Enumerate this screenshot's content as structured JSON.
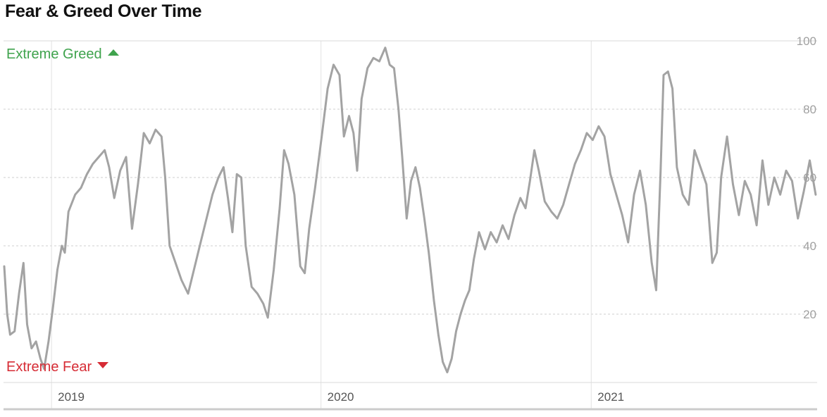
{
  "title": "Fear & Greed Over Time",
  "labels": {
    "extreme_greed": "Extreme Greed",
    "extreme_fear": "Extreme Fear"
  },
  "colors": {
    "line": "#a3a3a3",
    "grid": "#cfcfcf",
    "greed": "#3fa34d",
    "fear": "#d62c35",
    "tick_y": "#a0a0a0",
    "tick_x": "#555555"
  },
  "icons": {
    "greed_marker": "triangle-up-icon",
    "fear_marker": "triangle-down-icon"
  },
  "chart_data": {
    "type": "line",
    "title": "Fear & Greed Over Time",
    "xlabel": "",
    "ylabel": "",
    "ylim": [
      0,
      100
    ],
    "y_ticks": [
      20,
      40,
      60,
      80,
      100
    ],
    "x_ticks": [
      "2019",
      "2020",
      "2021"
    ],
    "xlim": [
      "2018-10-28",
      "2021-11-03"
    ],
    "grid": true,
    "series": [
      {
        "values": [
          [
            "2018-10-29",
            34
          ],
          [
            "2018-11-02",
            20
          ],
          [
            "2018-11-06",
            14
          ],
          [
            "2018-11-12",
            15
          ],
          [
            "2018-11-18",
            26
          ],
          [
            "2018-11-24",
            35
          ],
          [
            "2018-11-29",
            17
          ],
          [
            "2018-12-05",
            10
          ],
          [
            "2018-12-11",
            12
          ],
          [
            "2018-12-17",
            7
          ],
          [
            "2018-12-22",
            4
          ],
          [
            "2018-12-28",
            12
          ],
          [
            "2019-01-03",
            22
          ],
          [
            "2019-01-09",
            33
          ],
          [
            "2019-01-15",
            40
          ],
          [
            "2019-01-19",
            38
          ],
          [
            "2019-01-24",
            50
          ],
          [
            "2019-02-02",
            55
          ],
          [
            "2019-02-10",
            57
          ],
          [
            "2019-02-18",
            61
          ],
          [
            "2019-02-26",
            64
          ],
          [
            "2019-03-06",
            66
          ],
          [
            "2019-03-14",
            68
          ],
          [
            "2019-03-20",
            63
          ],
          [
            "2019-03-27",
            54
          ],
          [
            "2019-04-04",
            62
          ],
          [
            "2019-04-12",
            66
          ],
          [
            "2019-04-20",
            45
          ],
          [
            "2019-04-28",
            58
          ],
          [
            "2019-05-06",
            73
          ],
          [
            "2019-05-14",
            70
          ],
          [
            "2019-05-22",
            74
          ],
          [
            "2019-05-30",
            72
          ],
          [
            "2019-06-04",
            60
          ],
          [
            "2019-06-10",
            40
          ],
          [
            "2019-06-18",
            35
          ],
          [
            "2019-06-26",
            30
          ],
          [
            "2019-07-05",
            26
          ],
          [
            "2019-07-14",
            34
          ],
          [
            "2019-07-22",
            41
          ],
          [
            "2019-07-30",
            48
          ],
          [
            "2019-08-07",
            55
          ],
          [
            "2019-08-15",
            60
          ],
          [
            "2019-08-22",
            63
          ],
          [
            "2019-08-28",
            54
          ],
          [
            "2019-09-03",
            44
          ],
          [
            "2019-09-09",
            61
          ],
          [
            "2019-09-15",
            60
          ],
          [
            "2019-09-21",
            40
          ],
          [
            "2019-09-29",
            28
          ],
          [
            "2019-10-07",
            26
          ],
          [
            "2019-10-15",
            23
          ],
          [
            "2019-10-21",
            19
          ],
          [
            "2019-10-29",
            33
          ],
          [
            "2019-11-06",
            51
          ],
          [
            "2019-11-12",
            68
          ],
          [
            "2019-11-18",
            64
          ],
          [
            "2019-11-26",
            55
          ],
          [
            "2019-12-04",
            34
          ],
          [
            "2019-12-10",
            32
          ],
          [
            "2019-12-16",
            45
          ],
          [
            "2019-12-24",
            57
          ],
          [
            "2020-01-02",
            72
          ],
          [
            "2020-01-10",
            86
          ],
          [
            "2020-01-18",
            93
          ],
          [
            "2020-01-26",
            90
          ],
          [
            "2020-02-01",
            72
          ],
          [
            "2020-02-08",
            78
          ],
          [
            "2020-02-14",
            73
          ],
          [
            "2020-02-19",
            62
          ],
          [
            "2020-02-25",
            83
          ],
          [
            "2020-03-04",
            92
          ],
          [
            "2020-03-12",
            95
          ],
          [
            "2020-03-20",
            94
          ],
          [
            "2020-03-28",
            98
          ],
          [
            "2020-04-03",
            93
          ],
          [
            "2020-04-09",
            92
          ],
          [
            "2020-04-15",
            80
          ],
          [
            "2020-04-20",
            66
          ],
          [
            "2020-04-26",
            48
          ],
          [
            "2020-05-02",
            59
          ],
          [
            "2020-05-08",
            63
          ],
          [
            "2020-05-14",
            57
          ],
          [
            "2020-05-20",
            48
          ],
          [
            "2020-05-26",
            38
          ],
          [
            "2020-06-02",
            24
          ],
          [
            "2020-06-08",
            14
          ],
          [
            "2020-06-14",
            6
          ],
          [
            "2020-06-20",
            3
          ],
          [
            "2020-06-26",
            7
          ],
          [
            "2020-07-02",
            15
          ],
          [
            "2020-07-08",
            20
          ],
          [
            "2020-07-14",
            24
          ],
          [
            "2020-07-20",
            27
          ],
          [
            "2020-07-26",
            36
          ],
          [
            "2020-08-02",
            44
          ],
          [
            "2020-08-10",
            39
          ],
          [
            "2020-08-18",
            44
          ],
          [
            "2020-08-26",
            41
          ],
          [
            "2020-09-03",
            46
          ],
          [
            "2020-09-11",
            42
          ],
          [
            "2020-09-19",
            49
          ],
          [
            "2020-09-27",
            54
          ],
          [
            "2020-10-04",
            51
          ],
          [
            "2020-10-10",
            59
          ],
          [
            "2020-10-16",
            68
          ],
          [
            "2020-10-22",
            62
          ],
          [
            "2020-10-30",
            53
          ],
          [
            "2020-11-08",
            50
          ],
          [
            "2020-11-16",
            48
          ],
          [
            "2020-11-24",
            52
          ],
          [
            "2020-12-02",
            58
          ],
          [
            "2020-12-10",
            64
          ],
          [
            "2020-12-18",
            68
          ],
          [
            "2020-12-26",
            73
          ],
          [
            "2021-01-03",
            71
          ],
          [
            "2021-01-11",
            75
          ],
          [
            "2021-01-19",
            72
          ],
          [
            "2021-01-27",
            61
          ],
          [
            "2021-02-04",
            55
          ],
          [
            "2021-02-12",
            49
          ],
          [
            "2021-02-20",
            41
          ],
          [
            "2021-02-28",
            55
          ],
          [
            "2021-03-08",
            62
          ],
          [
            "2021-03-16",
            52
          ],
          [
            "2021-03-24",
            35
          ],
          [
            "2021-03-30",
            27
          ],
          [
            "2021-04-05",
            62
          ],
          [
            "2021-04-09",
            90
          ],
          [
            "2021-04-15",
            91
          ],
          [
            "2021-04-21",
            86
          ],
          [
            "2021-04-27",
            63
          ],
          [
            "2021-05-05",
            55
          ],
          [
            "2021-05-13",
            52
          ],
          [
            "2021-05-21",
            68
          ],
          [
            "2021-05-29",
            63
          ],
          [
            "2021-06-06",
            58
          ],
          [
            "2021-06-14",
            35
          ],
          [
            "2021-06-20",
            38
          ],
          [
            "2021-06-26",
            60
          ],
          [
            "2021-07-04",
            72
          ],
          [
            "2021-07-12",
            58
          ],
          [
            "2021-07-20",
            49
          ],
          [
            "2021-07-28",
            59
          ],
          [
            "2021-08-05",
            55
          ],
          [
            "2021-08-13",
            46
          ],
          [
            "2021-08-21",
            65
          ],
          [
            "2021-08-29",
            52
          ],
          [
            "2021-09-06",
            60
          ],
          [
            "2021-09-14",
            55
          ],
          [
            "2021-09-22",
            62
          ],
          [
            "2021-09-30",
            59
          ],
          [
            "2021-10-08",
            48
          ],
          [
            "2021-10-16",
            56
          ],
          [
            "2021-10-24",
            65
          ],
          [
            "2021-11-01",
            55
          ]
        ]
      }
    ]
  }
}
